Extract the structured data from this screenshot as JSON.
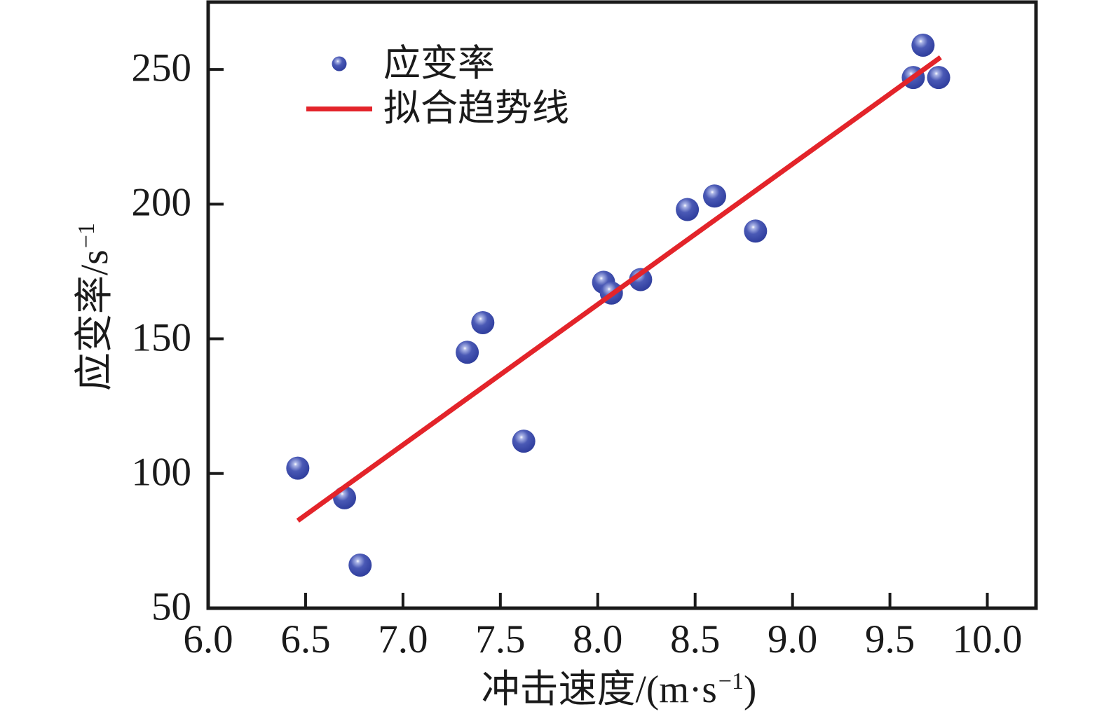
{
  "figure": {
    "background": "#ffffff",
    "text_color": "#1a1a1a"
  },
  "chart_data": {
    "type": "scatter",
    "title": "",
    "xlabel": "冲击速度/(m·s−1)",
    "ylabel": "应变率/s−1",
    "xlim": [
      6.0,
      10.25
    ],
    "ylim": [
      50,
      275
    ],
    "grid": false,
    "frame_color": "#1a1a1a",
    "legend_position": "upper-left-inside",
    "x_tick_values": [
      6.0,
      6.5,
      7.0,
      7.5,
      8.0,
      8.5,
      9.0,
      9.5,
      10.0
    ],
    "x_tick_labels": [
      "6.0",
      "6.5",
      "7.0",
      "7.5",
      "8.0",
      "8.5",
      "9.0",
      "9.5",
      "10.0"
    ],
    "y_tick_values": [
      50,
      100,
      150,
      200,
      250
    ],
    "y_tick_labels": [
      "50",
      "100",
      "150",
      "200",
      "250"
    ],
    "series": [
      {
        "name": "应变率",
        "type": "scatter",
        "marker": "sphere",
        "color": "#3d4caa",
        "points": [
          [
            6.46,
            102
          ],
          [
            6.7,
            91
          ],
          [
            6.78,
            66
          ],
          [
            7.33,
            145
          ],
          [
            7.41,
            156
          ],
          [
            7.62,
            112
          ],
          [
            8.03,
            171
          ],
          [
            8.07,
            167
          ],
          [
            8.22,
            172
          ],
          [
            8.46,
            198
          ],
          [
            8.6,
            203
          ],
          [
            8.81,
            190
          ],
          [
            9.62,
            247
          ],
          [
            9.67,
            259
          ],
          [
            9.75,
            247
          ]
        ]
      },
      {
        "name": "拟合趋势线",
        "type": "line",
        "color": "#e3242a",
        "points": [
          [
            6.46,
            82.5
          ],
          [
            9.76,
            254.5
          ]
        ]
      }
    ]
  },
  "axes": {
    "xlabel_parts": {
      "pre": "冲击速度/(m·s",
      "sup": "−1",
      "post": ")"
    },
    "ylabel_parts": {
      "pre": "应变率/s",
      "sup": "−1",
      "post": ""
    }
  },
  "legend": {
    "items": [
      {
        "label": "应变率",
        "marker": "sphere-dot"
      },
      {
        "label": "拟合趋势线",
        "marker": "red-line"
      }
    ]
  }
}
